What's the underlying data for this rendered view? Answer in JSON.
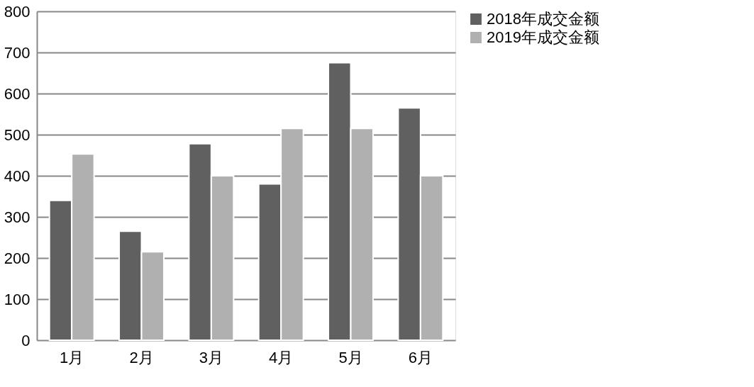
{
  "chart_data": {
    "type": "bar",
    "categories": [
      "1月",
      "2月",
      "3月",
      "4月",
      "5月",
      "6月"
    ],
    "series": [
      {
        "name": "2018年成交金额",
        "color": "#606060",
        "values": [
          340,
          265,
          478,
          380,
          675,
          565
        ]
      },
      {
        "name": "2019年成交金额",
        "color": "#b0b0b0",
        "values": [
          453,
          215,
          400,
          515,
          515,
          400
        ]
      }
    ],
    "ylim": [
      0,
      800
    ],
    "yticks": [
      0,
      100,
      200,
      300,
      400,
      500,
      600,
      700,
      800
    ],
    "grid": "y",
    "legend": "right"
  }
}
